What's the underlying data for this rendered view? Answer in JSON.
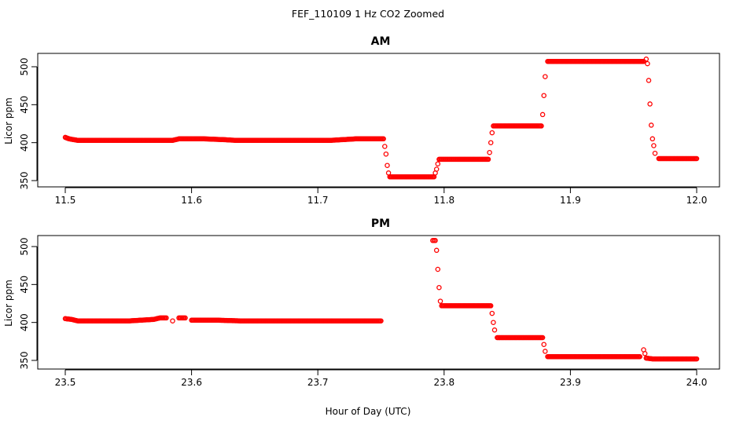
{
  "figure": {
    "title": "FEF_110109  1 Hz CO2 Zoomed",
    "xlabel": "Hour of Day (UTC)"
  },
  "chart_data": [
    {
      "type": "scatter",
      "title": "AM",
      "ylabel": "Licor ppm",
      "xlabel": "Hour of Day (UTC)",
      "xlim": [
        11.5,
        12.0
      ],
      "ylim": [
        350,
        520
      ],
      "xticks": [
        "11.5",
        "11.6",
        "11.7",
        "11.8",
        "11.9",
        "12.0"
      ],
      "yticks": [
        "350",
        "400",
        "450",
        "500"
      ],
      "grid": false,
      "marker_color": "#ff0000",
      "series": [
        {
          "points": [
            [
              11.5,
              407
            ],
            [
              11.503,
              405
            ],
            [
              11.51,
              403
            ],
            [
              11.53,
              403
            ],
            [
              11.55,
              403
            ],
            [
              11.57,
              403
            ],
            [
              11.585,
              403
            ],
            [
              11.59,
              405
            ],
            [
              11.6,
              405
            ],
            [
              11.61,
              405
            ],
            [
              11.625,
              404
            ],
            [
              11.635,
              403
            ],
            [
              11.65,
              403
            ],
            [
              11.67,
              403
            ],
            [
              11.69,
              403
            ],
            [
              11.71,
              403
            ],
            [
              11.72,
              404
            ],
            [
              11.73,
              405
            ],
            [
              11.745,
              405
            ],
            [
              11.752,
              405
            ],
            [
              11.753,
              395
            ],
            [
              11.754,
              385
            ],
            [
              11.755,
              370
            ],
            [
              11.756,
              360
            ],
            [
              11.757,
              355
            ],
            [
              11.77,
              355
            ],
            [
              11.785,
              355
            ],
            [
              11.792,
              355
            ],
            [
              11.793,
              360
            ],
            [
              11.794,
              365
            ],
            [
              11.795,
              372
            ],
            [
              11.796,
              378
            ],
            [
              11.81,
              378
            ],
            [
              11.825,
              378
            ],
            [
              11.835,
              378
            ],
            [
              11.836,
              387
            ],
            [
              11.837,
              400
            ],
            [
              11.838,
              413
            ],
            [
              11.839,
              422
            ],
            [
              11.85,
              422
            ],
            [
              11.865,
              422
            ],
            [
              11.877,
              422
            ],
            [
              11.878,
              437
            ],
            [
              11.879,
              462
            ],
            [
              11.88,
              487
            ],
            [
              11.882,
              507
            ],
            [
              11.9,
              507
            ],
            [
              11.92,
              507
            ],
            [
              11.94,
              507
            ],
            [
              11.958,
              507
            ],
            [
              11.96,
              510
            ],
            [
              11.961,
              504
            ],
            [
              11.962,
              482
            ],
            [
              11.963,
              451
            ],
            [
              11.964,
              423
            ],
            [
              11.965,
              405
            ],
            [
              11.966,
              396
            ],
            [
              11.967,
              386
            ],
            [
              11.97,
              379
            ],
            [
              11.98,
              379
            ],
            [
              11.99,
              379
            ],
            [
              12.0,
              379
            ]
          ]
        }
      ]
    },
    {
      "type": "scatter",
      "title": "PM",
      "ylabel": "Licor ppm",
      "xlabel": "Hour of Day (UTC)",
      "xlim": [
        23.5,
        24.0
      ],
      "ylim": [
        350,
        515
      ],
      "xticks": [
        "23.5",
        "23.6",
        "23.7",
        "23.8",
        "23.9",
        "24.0"
      ],
      "yticks": [
        "350",
        "400",
        "450",
        "500"
      ],
      "grid": false,
      "marker_color": "#ff0000",
      "series": [
        {
          "points": [
            [
              23.5,
              405
            ],
            [
              23.505,
              404
            ],
            [
              23.51,
              402
            ],
            [
              23.53,
              402
            ],
            [
              23.55,
              402
            ],
            [
              23.56,
              403
            ],
            [
              23.57,
              404
            ],
            [
              23.575,
              406
            ],
            [
              23.58,
              406
            ],
            [
              23.585,
              402
            ],
            [
              23.59,
              406
            ],
            [
              23.595,
              406
            ],
            [
              23.6,
              403
            ],
            [
              23.62,
              403
            ],
            [
              23.64,
              402
            ],
            [
              23.66,
              402
            ],
            [
              23.68,
              402
            ],
            [
              23.7,
              402
            ],
            [
              23.72,
              402
            ],
            [
              23.74,
              402
            ],
            [
              23.75,
              402
            ],
            [
              23.791,
              508
            ],
            [
              23.793,
              508
            ],
            [
              23.794,
              495
            ],
            [
              23.795,
              470
            ],
            [
              23.796,
              446
            ],
            [
              23.797,
              428
            ],
            [
              23.798,
              422
            ],
            [
              23.81,
              422
            ],
            [
              23.825,
              422
            ],
            [
              23.837,
              422
            ],
            [
              23.838,
              412
            ],
            [
              23.839,
              400
            ],
            [
              23.84,
              390
            ],
            [
              23.842,
              380
            ],
            [
              23.855,
              380
            ],
            [
              23.868,
              380
            ],
            [
              23.878,
              380
            ],
            [
              23.879,
              371
            ],
            [
              23.88,
              362
            ],
            [
              23.882,
              355
            ],
            [
              23.9,
              355
            ],
            [
              23.92,
              355
            ],
            [
              23.94,
              355
            ],
            [
              23.955,
              355
            ],
            [
              23.958,
              364
            ],
            [
              23.959,
              359
            ],
            [
              23.96,
              353
            ],
            [
              23.965,
              352
            ],
            [
              23.975,
              352
            ],
            [
              23.99,
              352
            ],
            [
              24.0,
              352
            ]
          ]
        }
      ]
    }
  ]
}
